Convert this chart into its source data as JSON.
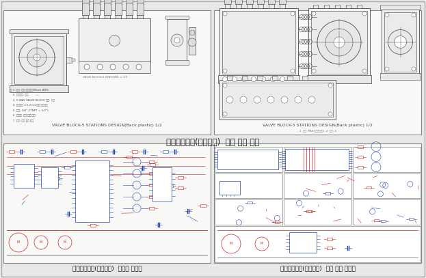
{
  "bg_color": "#e8e8e8",
  "panel_bg": "#f2f2f0",
  "border_color": "#888888",
  "outer_border": "#aaaaaa",
  "title_top": "선별분리장치(토출장치)  밸브 블록 설계",
  "title_bottom_left": "선별분리장치(토출장치)  제어기 회로도",
  "title_bottom_right": "선별분리장치(토출장치)  제어 부품 회로도",
  "subtitle_tl": "VALVE BLOCK-5 STATIONS DESIGN(Back plastic) 1/2",
  "subtitle_tr": "VALVE BLOCK-5 STATIONS DESIGN(Back plastic) 1/2",
  "font_title": 8.5,
  "font_caption": 6.5,
  "font_sub": 4.5,
  "dark": "#444444",
  "med": "#777777",
  "light": "#cccccc",
  "rc": "#cc2222",
  "bc": "#2244aa",
  "panel_tl": [
    5,
    210,
    303,
    182
  ],
  "panel_tr": [
    313,
    210,
    303,
    182
  ],
  "panel_bl": [
    5,
    22,
    303,
    175
  ],
  "panel_br": [
    313,
    22,
    303,
    175
  ]
}
